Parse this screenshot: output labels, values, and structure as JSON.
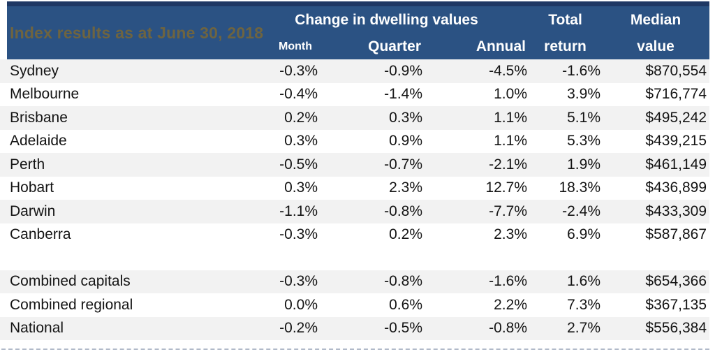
{
  "colors": {
    "header_bg": "#2B5283",
    "header_top_bar": "#1F3864",
    "title_text": "#6E6440",
    "header_text": "#FFFFFF",
    "row_shaded_bg": "#F2F2F2",
    "row_plain_bg": "#FFFFFF",
    "body_text": "#141414"
  },
  "chart_data": {
    "type": "table",
    "title": "Index results as at June 30, 2018",
    "header": {
      "group_label": "Change in dwelling values",
      "month_label": "Month",
      "quarter_label": "Quarter",
      "annual_label": "Annual",
      "total_line1": "Total",
      "total_line2": "return",
      "median_line1": "Median",
      "median_line2": "value",
      "columns": [
        "Month",
        "Quarter",
        "Annual",
        "Total return",
        "Median value"
      ]
    },
    "rows": [
      {
        "name": "Sydney",
        "month": "-0.3%",
        "quarter": "-0.9%",
        "annual": "-4.5%",
        "total_return": "-1.6%",
        "median_value": "$870,554"
      },
      {
        "name": "Melbourne",
        "month": "-0.4%",
        "quarter": "-1.4%",
        "annual": "1.0%",
        "total_return": "3.9%",
        "median_value": "$716,774"
      },
      {
        "name": "Brisbane",
        "month": "0.2%",
        "quarter": "0.3%",
        "annual": "1.1%",
        "total_return": "5.1%",
        "median_value": "$495,242"
      },
      {
        "name": "Adelaide",
        "month": "0.3%",
        "quarter": "0.9%",
        "annual": "1.1%",
        "total_return": "5.3%",
        "median_value": "$439,215"
      },
      {
        "name": "Perth",
        "month": "-0.5%",
        "quarter": "-0.7%",
        "annual": "-2.1%",
        "total_return": "1.9%",
        "median_value": "$461,149"
      },
      {
        "name": "Hobart",
        "month": "0.3%",
        "quarter": "2.3%",
        "annual": "12.7%",
        "total_return": "18.3%",
        "median_value": "$436,899"
      },
      {
        "name": "Darwin",
        "month": "-1.1%",
        "quarter": "-0.8%",
        "annual": "-7.7%",
        "total_return": "-2.4%",
        "median_value": "$433,309"
      },
      {
        "name": "Canberra",
        "month": "-0.3%",
        "quarter": "0.2%",
        "annual": "2.3%",
        "total_return": "6.9%",
        "median_value": "$587,867"
      },
      {
        "spacer": true
      },
      {
        "name": "Combined capitals",
        "month": "-0.3%",
        "quarter": "-0.8%",
        "annual": "-1.6%",
        "total_return": "1.6%",
        "median_value": "$654,366"
      },
      {
        "name": "Combined regional",
        "month": "0.0%",
        "quarter": "0.6%",
        "annual": "2.2%",
        "total_return": "7.3%",
        "median_value": "$367,135"
      },
      {
        "name": "National",
        "month": "-0.2%",
        "quarter": "-0.5%",
        "annual": "-0.8%",
        "total_return": "2.7%",
        "median_value": "$556,384"
      }
    ]
  }
}
